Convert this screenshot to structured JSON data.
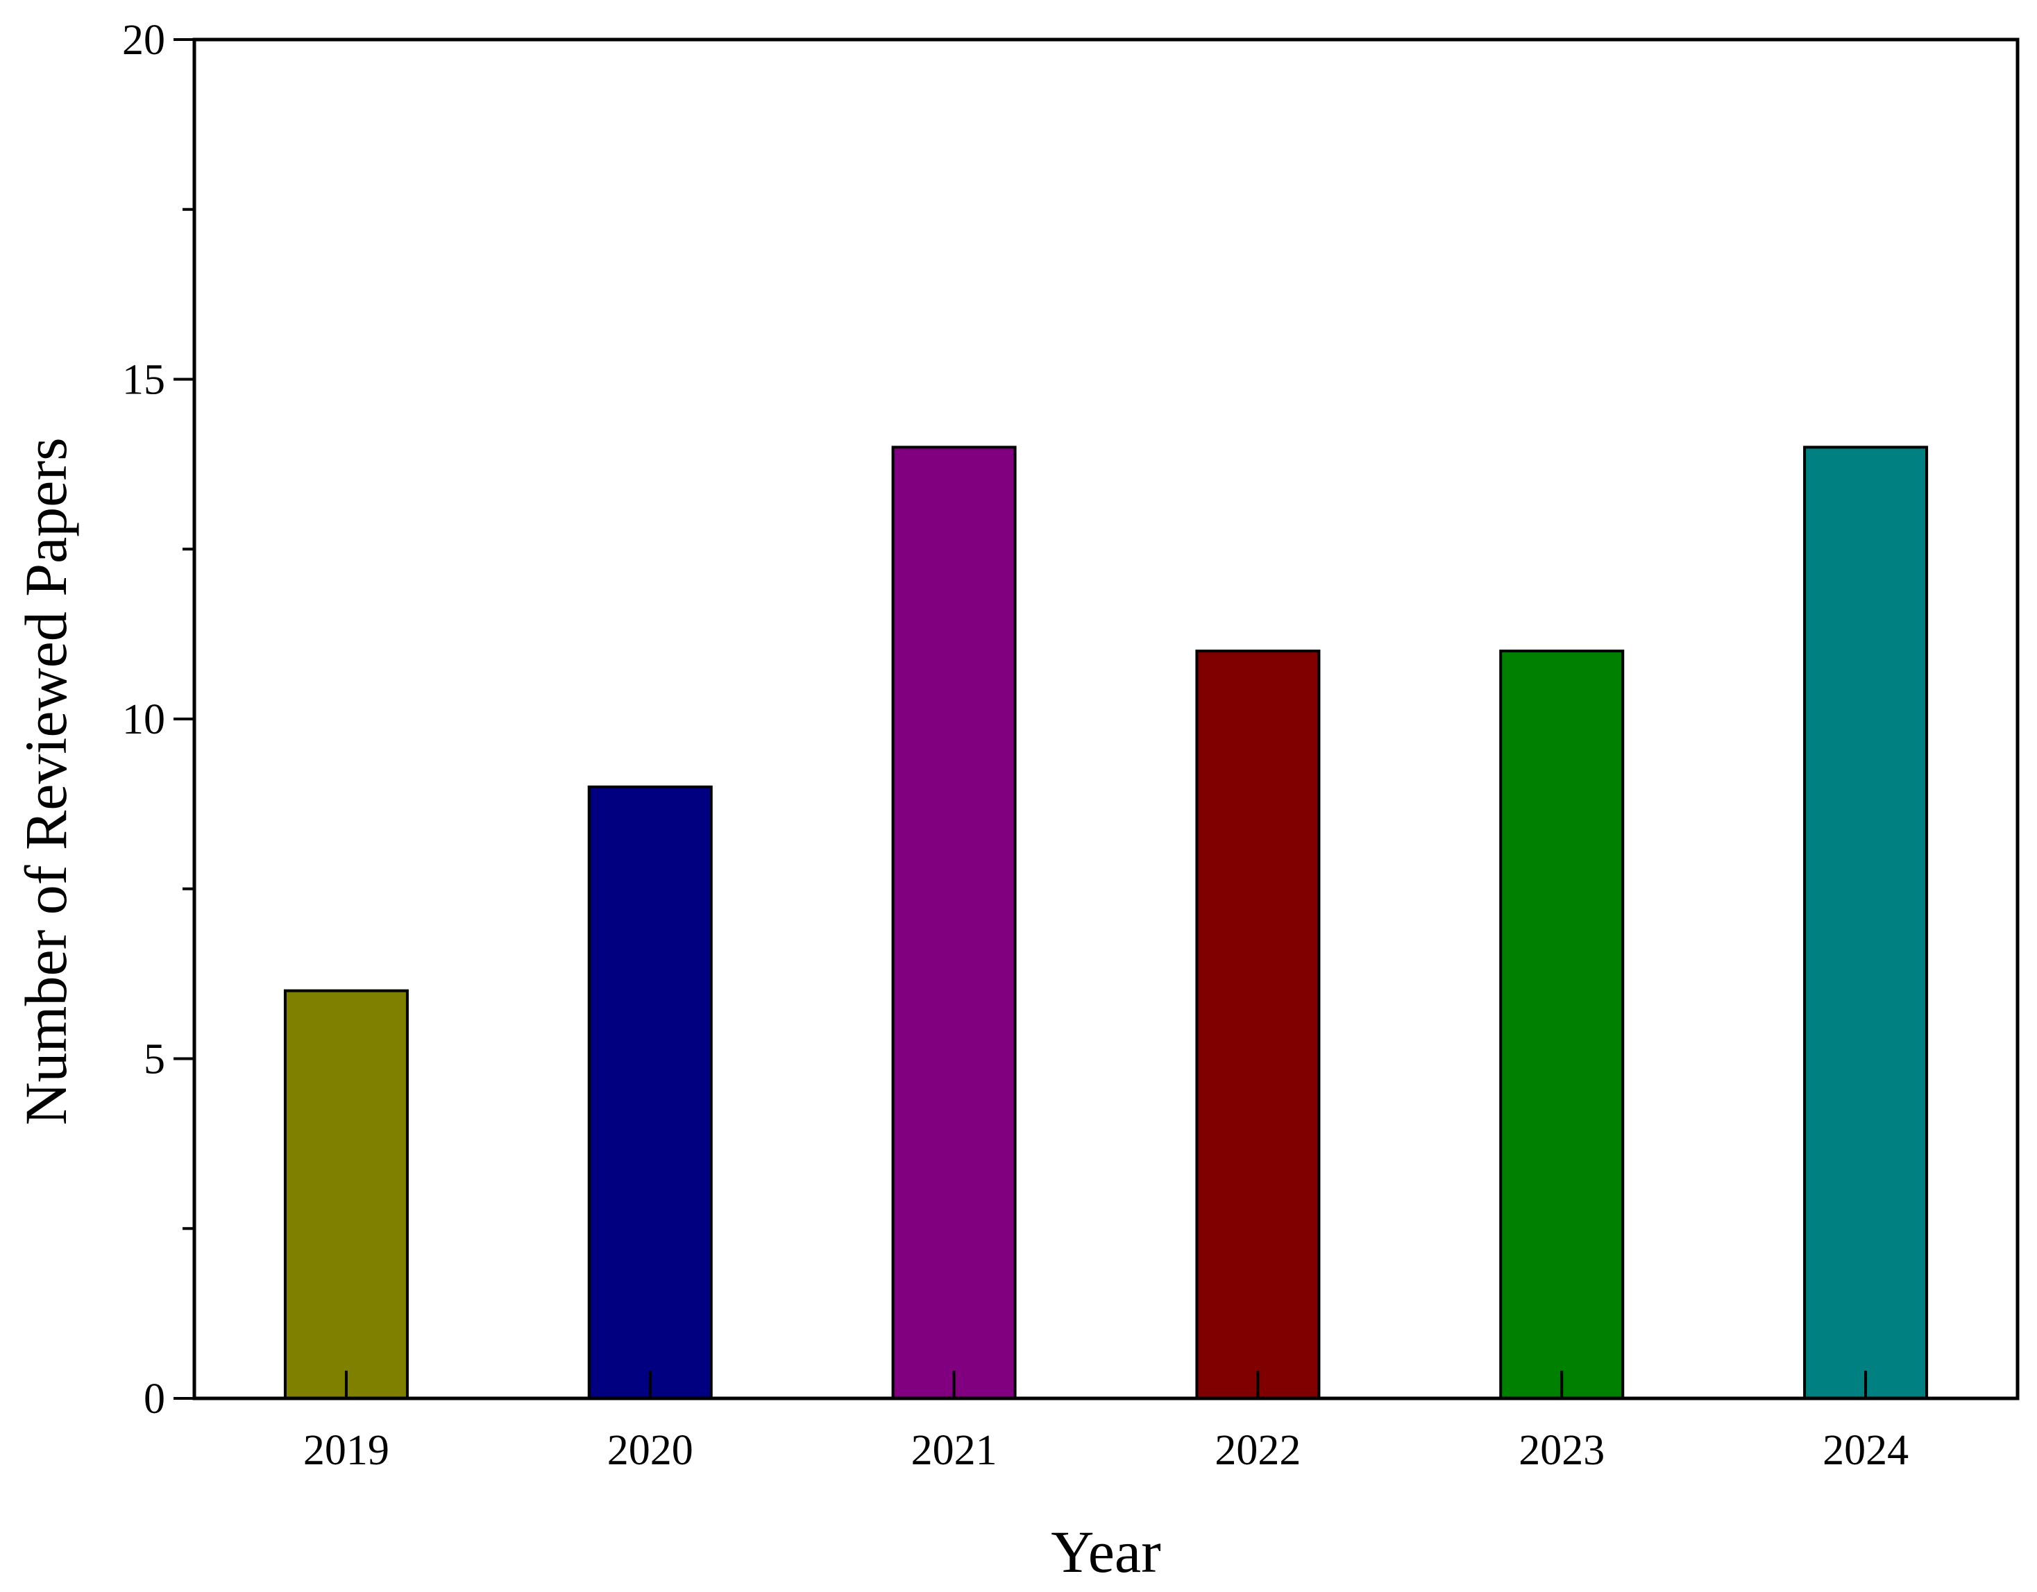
{
  "chart_data": {
    "type": "bar",
    "title": "",
    "xlabel": "Year",
    "ylabel": "Number of Reviewed Papers",
    "categories": [
      "2019",
      "2020",
      "2021",
      "2022",
      "2023",
      "2024"
    ],
    "values": [
      6,
      9,
      14,
      11,
      11,
      14
    ],
    "colors": [
      "#808000",
      "#000080",
      "#800080",
      "#800000",
      "#008000",
      "#008080"
    ],
    "ylim": [
      0,
      20
    ],
    "yticks": [
      0,
      5,
      10,
      15,
      20
    ],
    "yticks_minor": [
      2.5,
      7.5,
      12.5,
      17.5
    ],
    "grid": false,
    "legend": "none"
  }
}
